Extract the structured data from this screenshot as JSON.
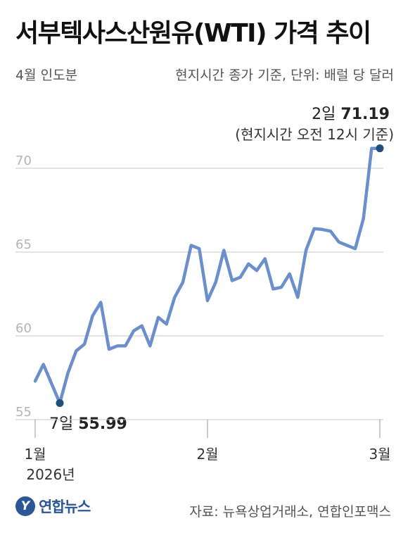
{
  "header": {
    "title": "서부텍사스산원유(WTI) 가격 추이",
    "subtitle_left": "4월 인도분",
    "subtitle_right": "현지시간 종가 기준, 단위: 배럴 당 달러"
  },
  "annotations": {
    "max_day": "2일",
    "max_value": "71.19",
    "max_note": "(현지시간 오전 12시 기준)",
    "min_day": "7일",
    "min_value": "55.99"
  },
  "footer": {
    "logo_mark": "Y",
    "logo_text": "연합뉴스",
    "source": "자료: 뉴욕상업거래소, 연합인포맥스"
  },
  "colors": {
    "line": "#6b8fcc",
    "marker": "#1f4e79",
    "grid": "#c8c8c8",
    "tick_label": "#b5b5b5"
  },
  "chart_data": {
    "type": "line",
    "ylim": [
      53.5,
      73
    ],
    "yticks": [
      55,
      60,
      65,
      70
    ],
    "ytick_labels": [
      "55",
      "60",
      "65",
      "70"
    ],
    "xticks": [
      {
        "label": "1월",
        "label2": "2026년",
        "x": 1
      },
      {
        "label": "2월",
        "label2": "",
        "x": 22
      },
      {
        "label": "3월",
        "label2": "",
        "x": 43
      }
    ],
    "xlim": [
      1,
      43
    ],
    "grid": "horizontal",
    "x": [
      1,
      2,
      4,
      5,
      6,
      7,
      8,
      9,
      10,
      11,
      12,
      13,
      14,
      15,
      16,
      17,
      18,
      19,
      20,
      21,
      22,
      23,
      24,
      25,
      26,
      27,
      28,
      29,
      30,
      31,
      32,
      33,
      34,
      35,
      36,
      37,
      38,
      39,
      40,
      41,
      42,
      43
    ],
    "values": [
      57.3,
      58.3,
      55.99,
      57.8,
      59.1,
      59.5,
      61.2,
      62.0,
      59.2,
      59.4,
      59.4,
      60.3,
      60.6,
      59.4,
      61.1,
      60.7,
      62.3,
      63.2,
      65.4,
      65.2,
      62.1,
      63.2,
      65.1,
      63.3,
      63.5,
      64.3,
      63.9,
      64.6,
      62.8,
      62.9,
      63.7,
      62.3,
      65.1,
      66.4,
      66.35,
      66.25,
      65.6,
      65.4,
      65.2,
      67.0,
      71.19,
      71.19
    ],
    "highlight": [
      {
        "x": 4,
        "value": 55.99
      },
      {
        "x": 43,
        "value": 71.19
      }
    ]
  }
}
